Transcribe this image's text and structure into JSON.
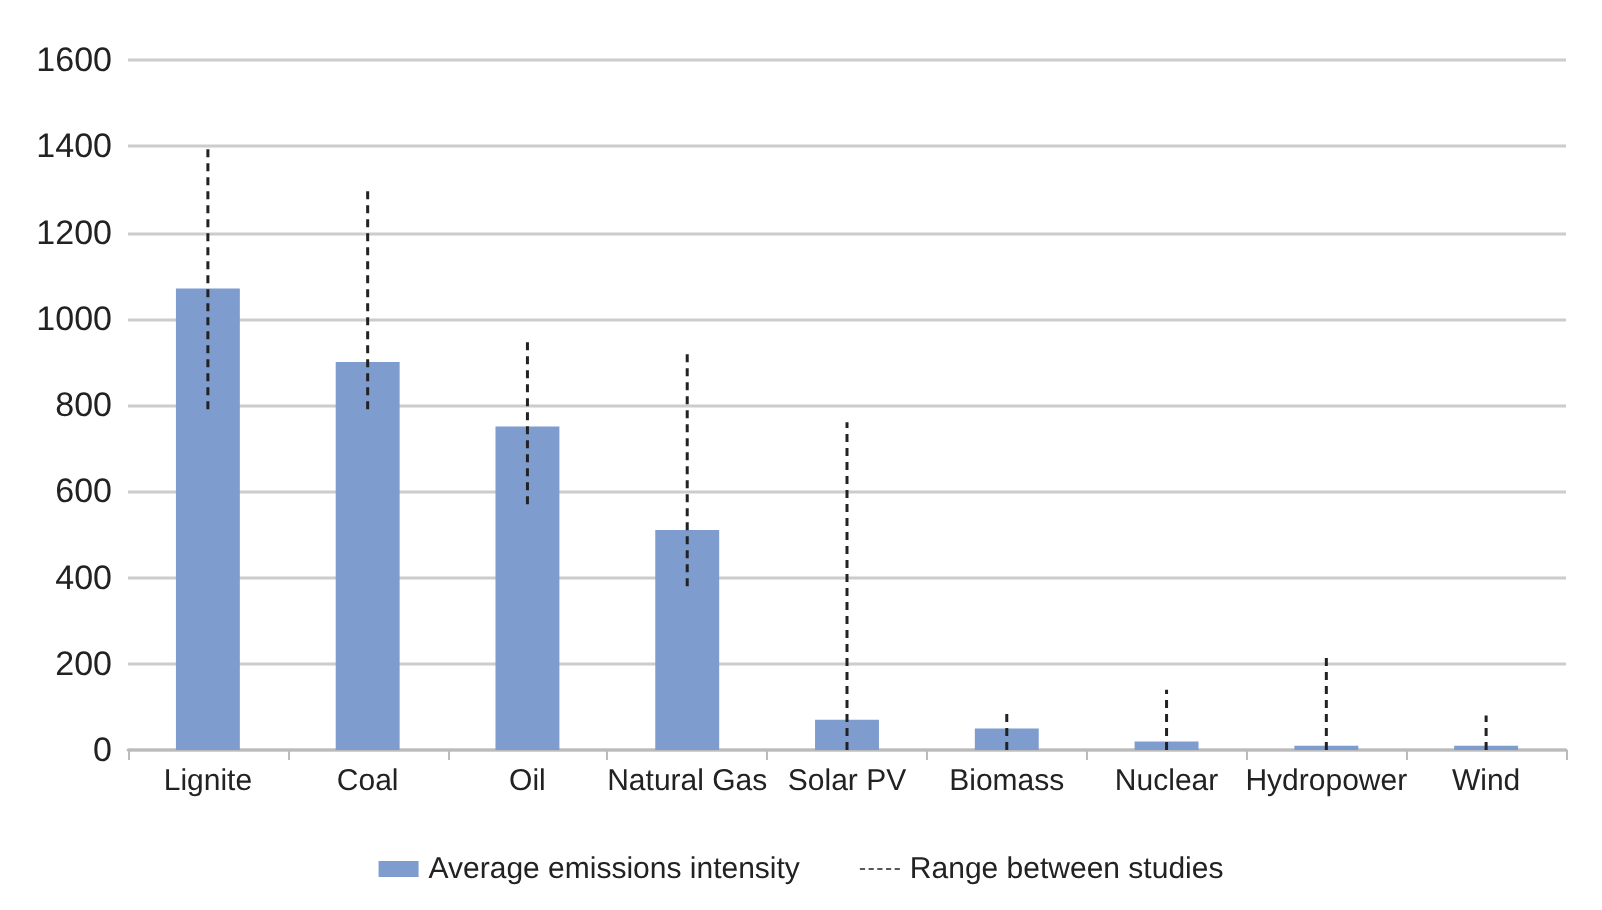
{
  "chart_data": {
    "type": "bar",
    "categories": [
      "Lignite",
      "Coal",
      "Oil",
      "Natural Gas",
      "Solar PV",
      "Biomass",
      "Nuclear",
      "Hydropower",
      "Wind"
    ],
    "series": [
      {
        "name": "Average emissions intensity",
        "color": "#7f9ccf",
        "values": [
          1070,
          900,
          750,
          510,
          70,
          50,
          20,
          10,
          10
        ],
        "errors": [
          [
            790,
            1400
          ],
          [
            790,
            1300
          ],
          [
            570,
            950
          ],
          [
            380,
            920
          ],
          [
            0,
            760
          ],
          [
            0,
            90
          ],
          [
            0,
            140
          ],
          [
            0,
            220
          ],
          [
            0,
            80
          ]
        ]
      }
    ],
    "annotations": [
      "Range between studies"
    ],
    "ylim": [
      0,
      1600
    ],
    "yticks": [
      0,
      200,
      400,
      600,
      800,
      1000,
      1200,
      1400,
      1600
    ],
    "grid": "y",
    "legend": "bottom"
  }
}
